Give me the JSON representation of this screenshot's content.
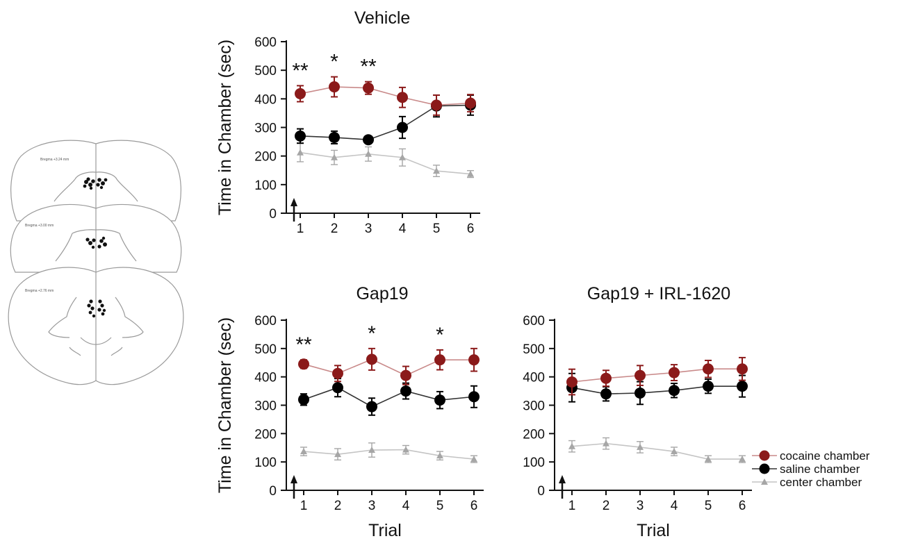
{
  "figure": {
    "brain_labels": [
      "Bregma +3.24 mm",
      "Bregma +3.00 mm",
      "Bregma +2.76 mm"
    ]
  },
  "colors": {
    "cocaine": "#8b1a1a",
    "saline": "#000000",
    "center": "#a6a6a6"
  },
  "chart_data": [
    {
      "type": "line",
      "title": "Vehicle",
      "ylabel": "Time in Chamber (sec)",
      "xlabel": "",
      "x": [
        1,
        2,
        3,
        4,
        5,
        6
      ],
      "ylim": [
        0,
        600
      ],
      "yticks": [
        0,
        100,
        200,
        300,
        400,
        500,
        600
      ],
      "series": [
        {
          "key": "cocaine",
          "values": [
            418,
            442,
            438,
            405,
            378,
            385
          ],
          "errors": [
            28,
            35,
            22,
            35,
            35,
            30
          ]
        },
        {
          "key": "saline",
          "values": [
            270,
            265,
            257,
            300,
            375,
            378
          ],
          "errors": [
            25,
            22,
            12,
            38,
            38,
            35
          ]
        },
        {
          "key": "center",
          "values": [
            212,
            195,
            207,
            195,
            148,
            137
          ],
          "errors": [
            32,
            25,
            25,
            30,
            20,
            12
          ]
        }
      ],
      "significance": [
        {
          "x": 1,
          "label": "**"
        },
        {
          "x": 2,
          "label": "*"
        },
        {
          "x": 3,
          "label": "**"
        }
      ]
    },
    {
      "type": "line",
      "title": "Gap19",
      "ylabel": "Time in Chamber (sec)",
      "xlabel": "Trial",
      "x": [
        1,
        2,
        3,
        4,
        5,
        6
      ],
      "ylim": [
        0,
        600
      ],
      "yticks": [
        0,
        100,
        200,
        300,
        400,
        500,
        600
      ],
      "series": [
        {
          "key": "cocaine",
          "values": [
            445,
            412,
            462,
            405,
            460,
            460
          ],
          "errors": [
            15,
            28,
            38,
            32,
            35,
            40
          ]
        },
        {
          "key": "saline",
          "values": [
            320,
            362,
            295,
            350,
            318,
            330
          ],
          "errors": [
            20,
            32,
            30,
            28,
            30,
            38
          ]
        },
        {
          "key": "center",
          "values": [
            137,
            127,
            142,
            143,
            122,
            110
          ],
          "errors": [
            15,
            20,
            25,
            15,
            15,
            12
          ]
        }
      ],
      "significance": [
        {
          "x": 1,
          "label": "**"
        },
        {
          "x": 3,
          "label": "*"
        },
        {
          "x": 5,
          "label": "*"
        }
      ]
    },
    {
      "type": "line",
      "title": "Gap19 + IRL-1620",
      "ylabel": "",
      "xlabel": "Trial",
      "x": [
        1,
        2,
        3,
        4,
        5,
        6
      ],
      "ylim": [
        0,
        600
      ],
      "yticks": [
        0,
        100,
        200,
        300,
        400,
        500,
        600
      ],
      "series": [
        {
          "key": "cocaine",
          "values": [
            382,
            395,
            405,
            415,
            428,
            428
          ],
          "errors": [
            45,
            28,
            35,
            28,
            30,
            40
          ]
        },
        {
          "key": "saline",
          "values": [
            362,
            340,
            343,
            352,
            367,
            367
          ],
          "errors": [
            50,
            25,
            40,
            25,
            25,
            38
          ]
        },
        {
          "key": "center",
          "values": [
            155,
            165,
            152,
            137,
            110,
            110
          ],
          "errors": [
            20,
            20,
            20,
            15,
            12,
            12
          ]
        }
      ],
      "significance": []
    }
  ],
  "legend": [
    {
      "key": "cocaine",
      "label": "cocaine chamber",
      "marker": "circle"
    },
    {
      "key": "saline",
      "label": "saline chamber",
      "marker": "circle"
    },
    {
      "key": "center",
      "label": "center chamber",
      "marker": "triangle"
    }
  ]
}
